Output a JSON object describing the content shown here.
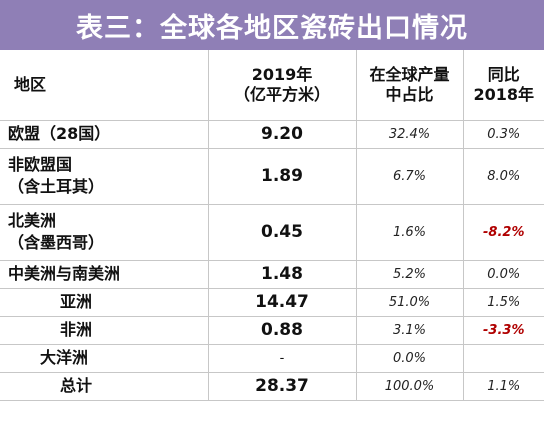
{
  "title": "表三：全球各地区瓷砖出口情况",
  "header": {
    "region": "地区",
    "volume_line1": "2019年",
    "volume_line2": "（亿平方米）",
    "share_line1": "在全球产量",
    "share_line2": "中占比",
    "yoy_line1": "同比",
    "yoy_line2": "2018年"
  },
  "rows": [
    {
      "region": "欧盟（28国）",
      "region2": "",
      "volume": "9.20",
      "share": "32.4%",
      "yoy": "0.3%",
      "negative": false
    },
    {
      "region": "非欧盟国",
      "region2": "（含土耳其）",
      "volume": "1.89",
      "share": "6.7%",
      "yoy": "8.0%",
      "negative": false
    },
    {
      "region": "北美洲",
      "region2": "（含墨西哥）",
      "volume": "0.45",
      "share": "1.6%",
      "yoy": "-8.2%",
      "negative": true
    },
    {
      "region": "中美洲与南美洲",
      "region2": "",
      "volume": "1.48",
      "share": "5.2%",
      "yoy": "0.0%",
      "negative": false
    },
    {
      "region": "亚洲",
      "region2": "",
      "volume": "14.47",
      "share": "51.0%",
      "yoy": "1.5%",
      "negative": false
    },
    {
      "region": "非洲",
      "region2": "",
      "volume": "0.88",
      "share": "3.1%",
      "yoy": "-3.3%",
      "negative": true
    },
    {
      "region": "大洋洲",
      "region2": "",
      "volume": "-",
      "share": "0.0%",
      "yoy": "",
      "negative": false
    },
    {
      "region": "总计",
      "region2": "",
      "volume": "28.37",
      "share": "100.0%",
      "yoy": "1.1%",
      "negative": false
    }
  ],
  "colors": {
    "title_bg": "#8f7fb6",
    "negative": "#b00000"
  }
}
